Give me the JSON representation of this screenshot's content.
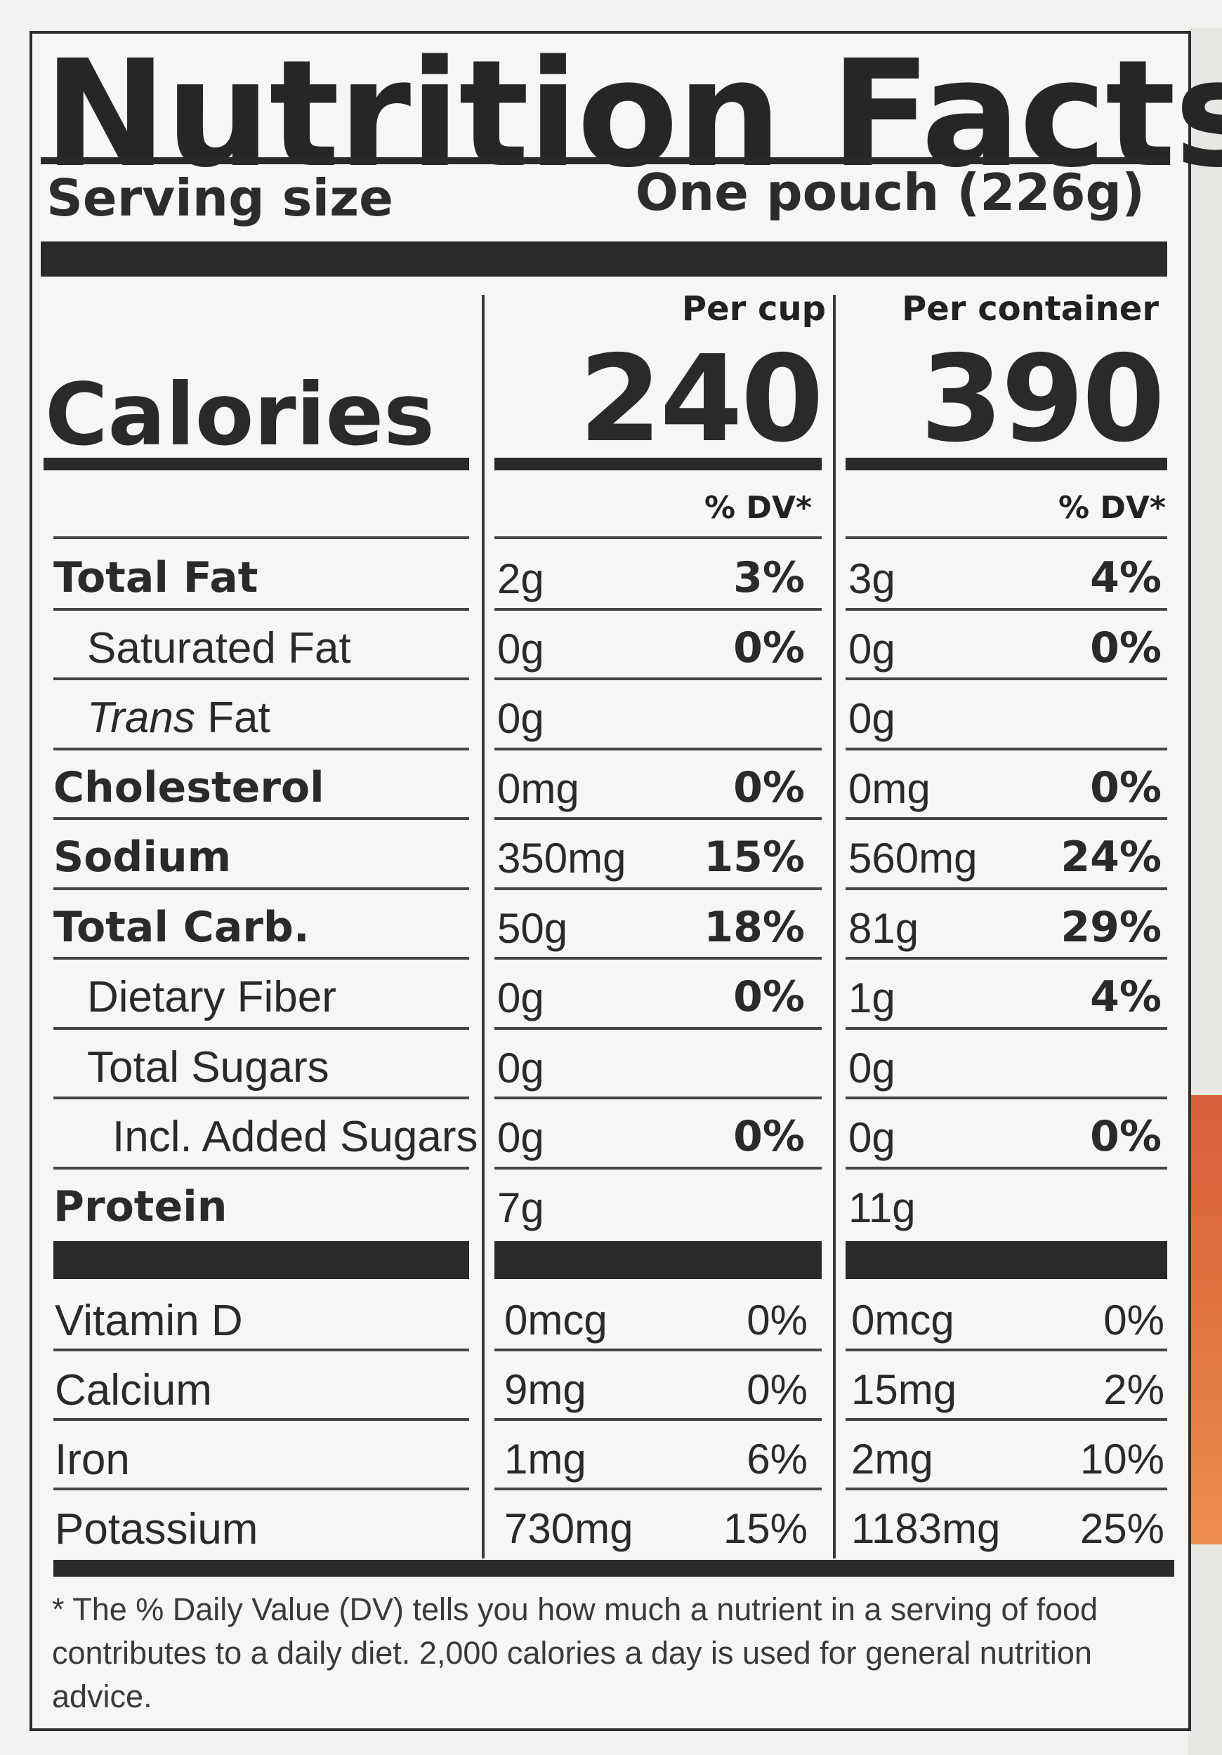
{
  "label": {
    "title": "Nutrition Facts",
    "serving_size_label": "Serving size",
    "serving_size_value": "One pouch (226g)",
    "col_headers": [
      "Per cup",
      "Per container"
    ],
    "calories_label": "Calories",
    "calories": [
      "240",
      "390"
    ],
    "dv_header": "% DV*",
    "nutrients": [
      {
        "label": "Total Fat",
        "style": "bold",
        "cup": "2g",
        "cup_dv": "3%",
        "cont": "3g",
        "cont_dv": "4%"
      },
      {
        "label": "Saturated Fat",
        "style": "i1",
        "cup": "0g",
        "cup_dv": "0%",
        "cont": "0g",
        "cont_dv": "0%"
      },
      {
        "label_italic": "Trans",
        "label_rest": " Fat",
        "style": "i1",
        "cup": "0g",
        "cup_dv": "",
        "cont": "0g",
        "cont_dv": ""
      },
      {
        "label": "Cholesterol",
        "style": "bold",
        "cup": "0mg",
        "cup_dv": "0%",
        "cont": "0mg",
        "cont_dv": "0%"
      },
      {
        "label": "Sodium",
        "style": "bold",
        "cup": "350mg",
        "cup_dv": "15%",
        "cont": "560mg",
        "cont_dv": "24%"
      },
      {
        "label": "Total Carb.",
        "style": "bold",
        "cup": "50g",
        "cup_dv": "18%",
        "cont": "81g",
        "cont_dv": "29%"
      },
      {
        "label": "Dietary Fiber",
        "style": "i1",
        "cup": "0g",
        "cup_dv": "0%",
        "cont": "1g",
        "cont_dv": "4%"
      },
      {
        "label": "Total Sugars",
        "style": "i1",
        "cup": "0g",
        "cup_dv": "",
        "cont": "0g",
        "cont_dv": ""
      },
      {
        "label": "Incl. Added Sugars",
        "style": "i2",
        "cup": "0g",
        "cup_dv": "0%",
        "cont": "0g",
        "cont_dv": "0%"
      },
      {
        "label": "Protein",
        "style": "bold",
        "cup": "7g",
        "cup_dv": "",
        "cont": "11g",
        "cont_dv": ""
      }
    ],
    "vitamins": [
      {
        "label": "Vitamin D",
        "cup": "0mcg",
        "cup_dv": "0%",
        "cont": "0mcg",
        "cont_dv": "0%"
      },
      {
        "label": "Calcium",
        "cup": "9mg",
        "cup_dv": "0%",
        "cont": "15mg",
        "cont_dv": "2%"
      },
      {
        "label": "Iron",
        "cup": "1mg",
        "cup_dv": "6%",
        "cont": "2mg",
        "cont_dv": "10%"
      },
      {
        "label": "Potassium",
        "cup": "730mg",
        "cup_dv": "15%",
        "cont": "1183mg",
        "cont_dv": "25%"
      }
    ],
    "footnote": "* The % Daily Value (DV) tells you how much a nutrient in a serving of food contributes to a daily diet. 2,000 calories a day is used for general nutrition advice."
  },
  "colors": {
    "ink": "#2a2a2a",
    "background": "#f7f6f4",
    "edge_orange": "#e06f3e"
  }
}
